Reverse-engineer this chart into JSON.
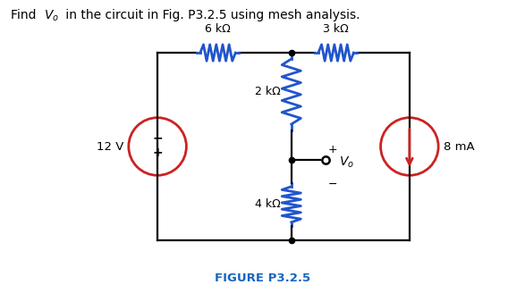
{
  "title_parts": [
    "Find ",
    "V",
    "o",
    " in the circuit in Fig. P3.2.5 using mesh analysis."
  ],
  "figure_label": "FIGURE P3.2.5",
  "figure_label_color": "#1565C0",
  "bg_color": "#ffffff",
  "circuit_color": "#000000",
  "resistor_color": "#2255cc",
  "source_color": "#cc2222",
  "labels": {
    "6kohm": "6 kΩ",
    "3kohm": "3 kΩ",
    "2kohm": "2 kΩ",
    "4kohm": "4 kΩ",
    "12V": "12 V",
    "8mA": "8 mA"
  },
  "layout": {
    "L": 0.3,
    "R": 0.78,
    "T": 0.82,
    "B": 0.18,
    "M": 0.555
  }
}
